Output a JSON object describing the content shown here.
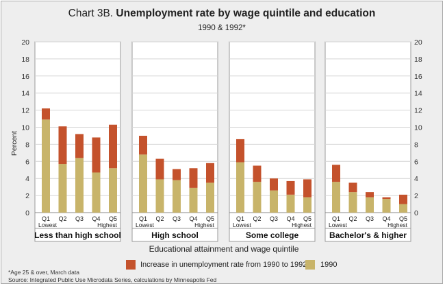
{
  "title_prefix": "Chart 3B.",
  "title_main": "Unemployment rate by wage quintile and education",
  "subtitle": "1990 & 1992*",
  "colors": {
    "base_1990": "#c8b46a",
    "increase": "#c4522c",
    "panel_bg": "#ffffff",
    "panel_border": "#999999",
    "grid": "#d4d4d4"
  },
  "chart_data": {
    "type": "bar",
    "stacked": true,
    "ylabel": "Percent",
    "xlabel": "Educational attainment and wage quintile",
    "ylim": [
      0,
      20
    ],
    "yticks": [
      0,
      2,
      4,
      6,
      8,
      10,
      12,
      14,
      16,
      18,
      20
    ],
    "grid": true,
    "legend_position": "bottom",
    "quintiles": [
      "Q1",
      "Q2",
      "Q3",
      "Q4",
      "Q5"
    ],
    "low_label": "Lowest",
    "high_label": "Highest",
    "series": [
      {
        "name": "Increase in unemployment rate from 1990 to 1992",
        "color_key": "increase"
      },
      {
        "name": "1990",
        "color_key": "base_1990"
      }
    ],
    "panels": [
      {
        "name": "Less than high school",
        "base_1990": [
          10.9,
          5.7,
          6.4,
          4.7,
          5.2
        ],
        "total_1992": [
          12.2,
          10.1,
          9.2,
          8.8,
          10.3
        ]
      },
      {
        "name": "High school",
        "base_1990": [
          6.8,
          3.9,
          3.8,
          2.9,
          3.5
        ],
        "total_1992": [
          9.0,
          6.3,
          5.1,
          5.2,
          5.8
        ]
      },
      {
        "name": "Some college",
        "base_1990": [
          5.9,
          3.6,
          2.6,
          2.1,
          1.8
        ],
        "total_1992": [
          8.6,
          5.5,
          4.0,
          3.7,
          3.9
        ]
      },
      {
        "name": "Bachelor's & higher",
        "base_1990": [
          3.6,
          2.4,
          1.8,
          1.6,
          1.0
        ],
        "total_1992": [
          5.6,
          3.5,
          2.4,
          1.8,
          2.1
        ]
      }
    ]
  },
  "footnotes": {
    "note": "*Age 25 & over, March data",
    "source": "Source: Integrated Public Use Microdata Series, calculations by Minneapolis Fed"
  }
}
